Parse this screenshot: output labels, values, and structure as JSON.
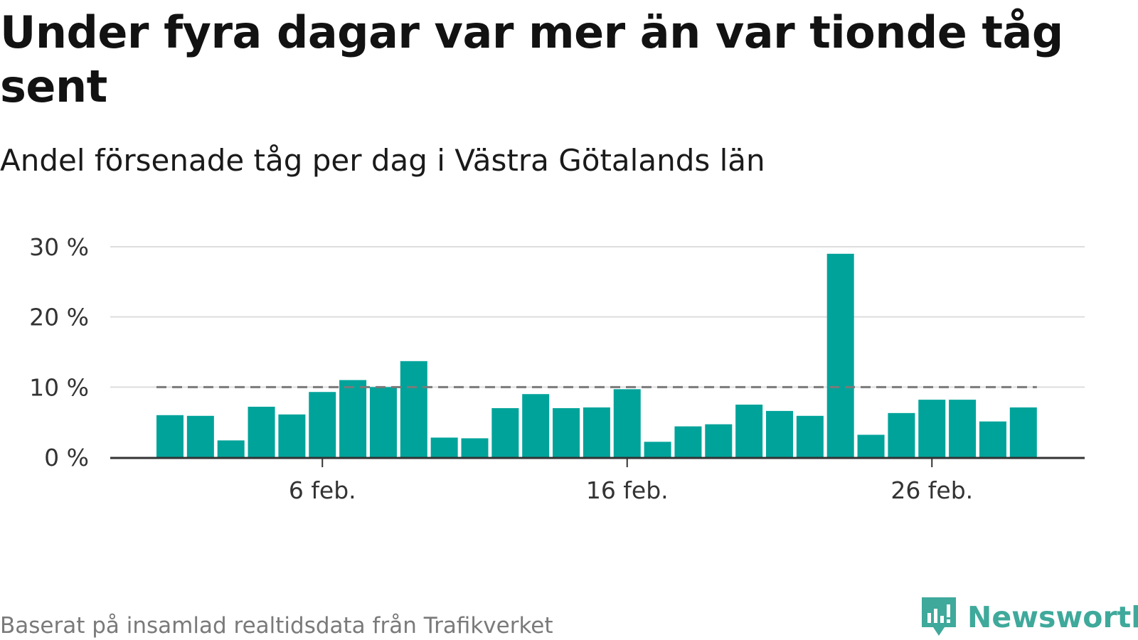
{
  "title": "Under fyra dagar var mer än var tionde tåg sent",
  "subtitle": "Andel försenade tåg per dag i Västra Götalands län",
  "source": "Baserat på insamlad realtidsdata från Trafikverket",
  "brand": {
    "name": "Newsworthy",
    "icon": "newsworthy-logo-icon",
    "color": "#3fa99b"
  },
  "colors": {
    "bar": "#00a39a",
    "threshold": "#7a7a7a",
    "grid": "#dddddd",
    "axis": "#333333"
  },
  "chart_data": {
    "type": "bar",
    "x": [
      "1 feb.",
      "2 feb.",
      "3 feb.",
      "4 feb.",
      "5 feb.",
      "6 feb.",
      "7 feb.",
      "8 feb.",
      "9 feb.",
      "10 feb.",
      "11 feb.",
      "12 feb.",
      "13 feb.",
      "14 feb.",
      "15 feb.",
      "16 feb.",
      "17 feb.",
      "18 feb.",
      "19 feb.",
      "20 feb.",
      "21 feb.",
      "22 feb.",
      "23 feb.",
      "24 feb.",
      "25 feb.",
      "26 feb.",
      "27 feb.",
      "28 feb.",
      "29 feb."
    ],
    "series": [
      {
        "values": [
          6.0,
          5.9,
          2.4,
          7.2,
          6.1,
          9.3,
          11.0,
          10.0,
          13.7,
          2.8,
          2.7,
          7.0,
          9.0,
          7.0,
          7.1,
          9.7,
          2.2,
          4.4,
          4.7,
          7.5,
          6.6,
          5.9,
          29.0,
          3.2,
          6.3,
          8.2,
          8.2,
          5.1,
          7.1
        ]
      }
    ],
    "threshold": 10,
    "xticks": [
      "6 feb.",
      "16 feb.",
      "26 feb."
    ],
    "yticks": [
      "0 %",
      "10 %",
      "20 %",
      "30 %"
    ],
    "ylim": [
      0,
      30
    ],
    "xlabel": "",
    "ylabel": "",
    "grid": true
  }
}
